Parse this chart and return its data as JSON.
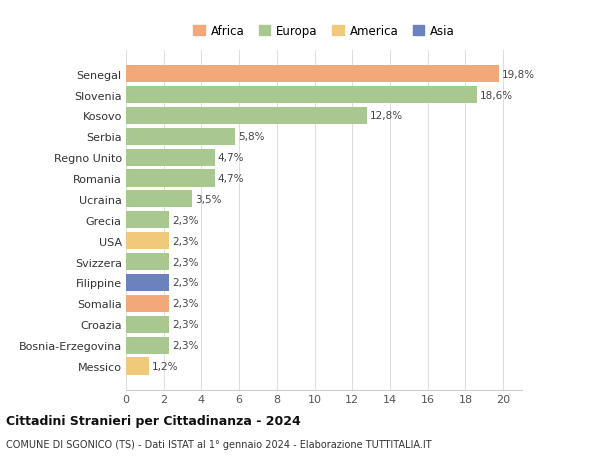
{
  "categories": [
    "Messico",
    "Bosnia-Erzegovina",
    "Croazia",
    "Somalia",
    "Filippine",
    "Svizzera",
    "USA",
    "Grecia",
    "Ucraina",
    "Romania",
    "Regno Unito",
    "Serbia",
    "Kosovo",
    "Slovenia",
    "Senegal"
  ],
  "values": [
    1.2,
    2.3,
    2.3,
    2.3,
    2.3,
    2.3,
    2.3,
    2.3,
    3.5,
    4.7,
    4.7,
    5.8,
    12.8,
    18.6,
    19.8
  ],
  "labels": [
    "1,2%",
    "2,3%",
    "2,3%",
    "2,3%",
    "2,3%",
    "2,3%",
    "2,3%",
    "2,3%",
    "3,5%",
    "4,7%",
    "4,7%",
    "5,8%",
    "12,8%",
    "18,6%",
    "19,8%"
  ],
  "colors": [
    "#f0c97a",
    "#a8c890",
    "#a8c890",
    "#f2a97a",
    "#6b82bf",
    "#a8c890",
    "#f0c97a",
    "#a8c890",
    "#a8c890",
    "#a8c890",
    "#a8c890",
    "#a8c890",
    "#a8c890",
    "#a8c890",
    "#f2a97a"
  ],
  "legend": [
    {
      "label": "Africa",
      "color": "#f2a97a"
    },
    {
      "label": "Europa",
      "color": "#a8c890"
    },
    {
      "label": "America",
      "color": "#f0c97a"
    },
    {
      "label": "Asia",
      "color": "#6b82bf"
    }
  ],
  "title": "Cittadini Stranieri per Cittadinanza - 2024",
  "subtitle": "COMUNE DI SGONICO (TS) - Dati ISTAT al 1° gennaio 2024 - Elaborazione TUTTITALIA.IT",
  "xlim": [
    0,
    21
  ],
  "xticks": [
    0,
    2,
    4,
    6,
    8,
    10,
    12,
    14,
    16,
    18,
    20
  ],
  "bg_color": "#ffffff",
  "grid_color": "#dddddd"
}
